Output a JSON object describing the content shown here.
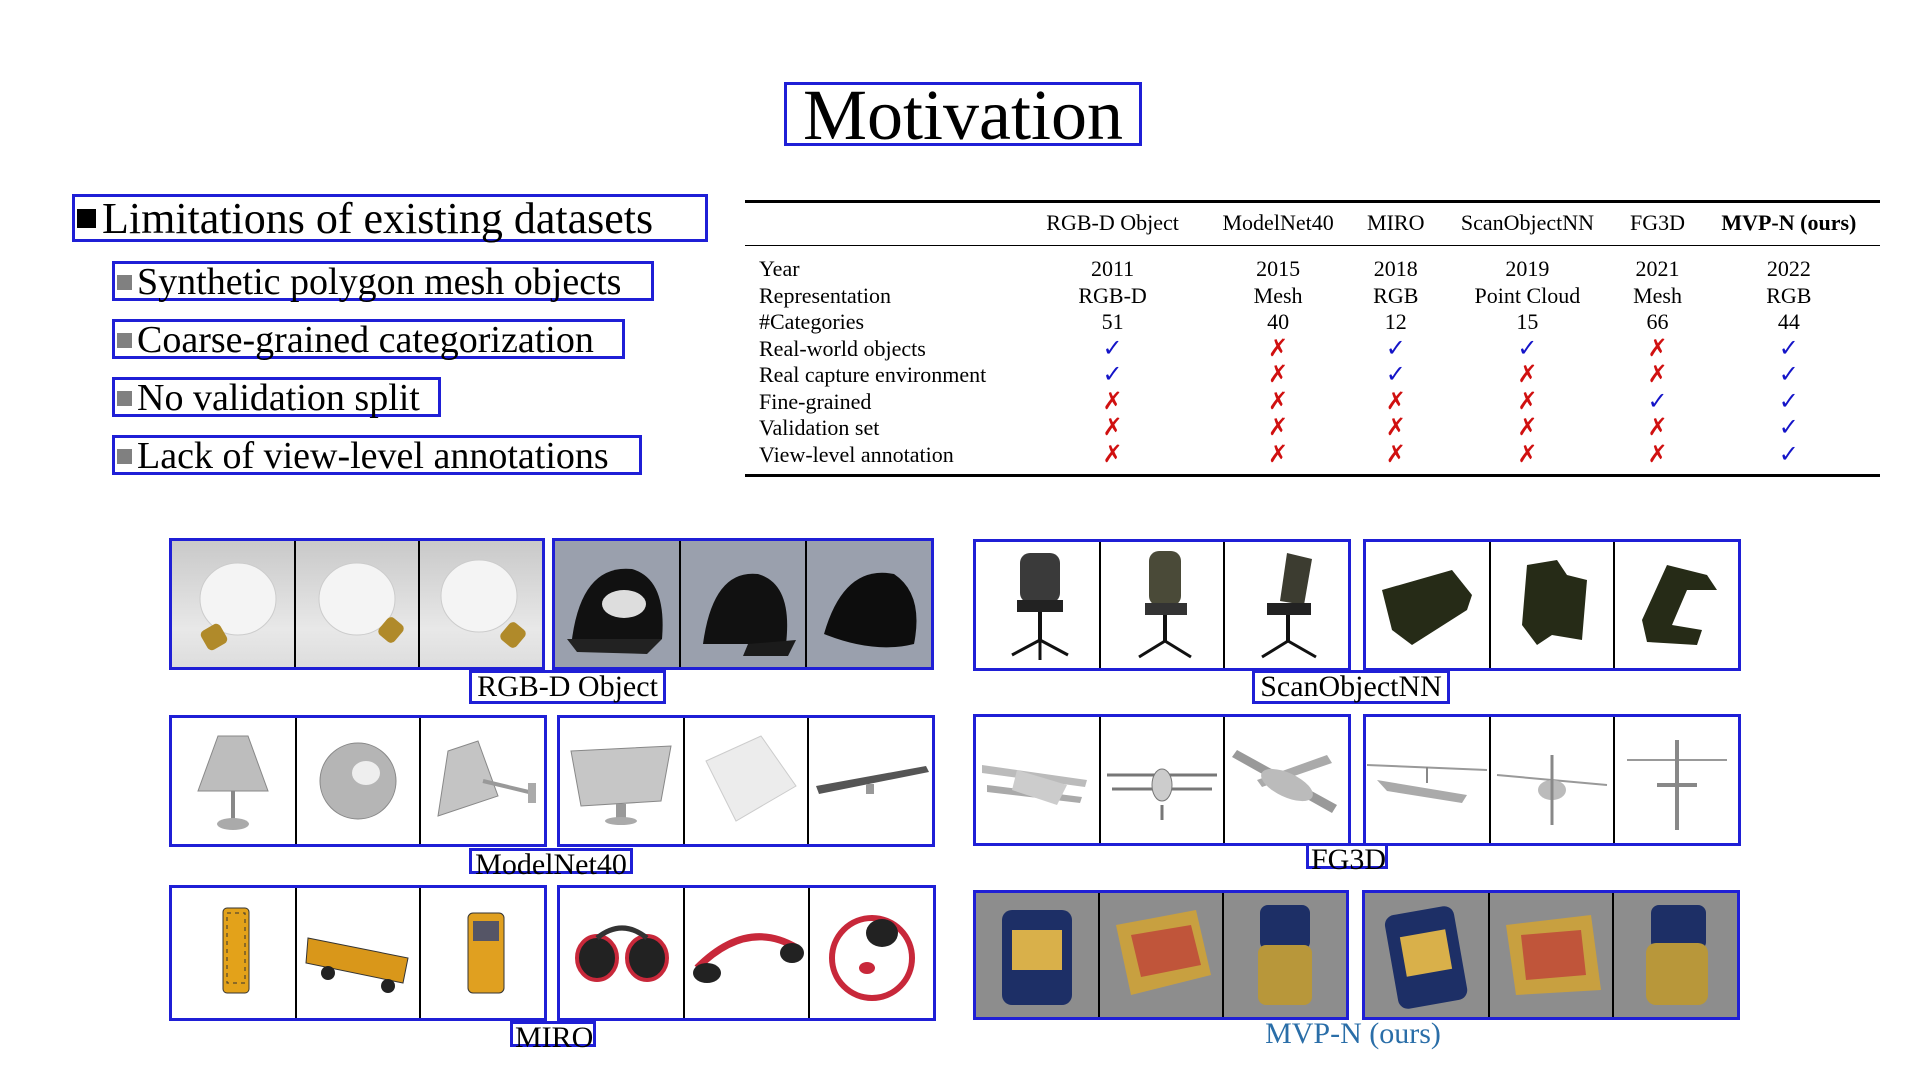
{
  "title": "Motivation",
  "limitations": {
    "heading": "Limitations of existing datasets",
    "items": [
      "Synthetic polygon mesh objects",
      "Coarse-grained categorization",
      "No validation split",
      "Lack of view-level annotations"
    ]
  },
  "table": {
    "columns": [
      "RGB-D Object",
      "ModelNet40",
      "MIRO",
      "ScanObjectNN",
      "FG3D",
      "MVP-N (ours)"
    ],
    "rows": [
      {
        "label": "Year",
        "values": [
          "2011",
          "2015",
          "2018",
          "2019",
          "2021",
          "2022"
        ]
      },
      {
        "label": "Representation",
        "values": [
          "RGB-D",
          "Mesh",
          "RGB",
          "Point Cloud",
          "Mesh",
          "RGB"
        ]
      },
      {
        "label": "#Categories",
        "values": [
          "51",
          "40",
          "12",
          "15",
          "66",
          "44"
        ]
      },
      {
        "label": "Real-world objects",
        "values": [
          "✓",
          "✗",
          "✓",
          "✓",
          "✗",
          "✓"
        ]
      },
      {
        "label": "Real capture environment",
        "values": [
          "✓",
          "✗",
          "✓",
          "✗",
          "✗",
          "✓"
        ]
      },
      {
        "label": "Fine-grained",
        "values": [
          "✗",
          "✗",
          "✗",
          "✗",
          "✓",
          "✓"
        ]
      },
      {
        "label": "Validation set",
        "values": [
          "✗",
          "✗",
          "✗",
          "✗",
          "✗",
          "✓"
        ]
      },
      {
        "label": "View-level annotation",
        "values": [
          "✗",
          "✗",
          "✗",
          "✗",
          "✗",
          "✓"
        ]
      }
    ]
  },
  "panels": {
    "rgbd": "RGB-D Object",
    "scanobjectnn": "ScanObjectNN",
    "modelnet40": "ModelNet40",
    "fg3d": "FG3D",
    "miro": "MIRO",
    "mvpn": "MVP-N (ours)"
  },
  "colors": {
    "box": "#1f1fd6",
    "check": "#1414c8",
    "cross": "#d01010",
    "ours_label": "#2a6ea8"
  }
}
